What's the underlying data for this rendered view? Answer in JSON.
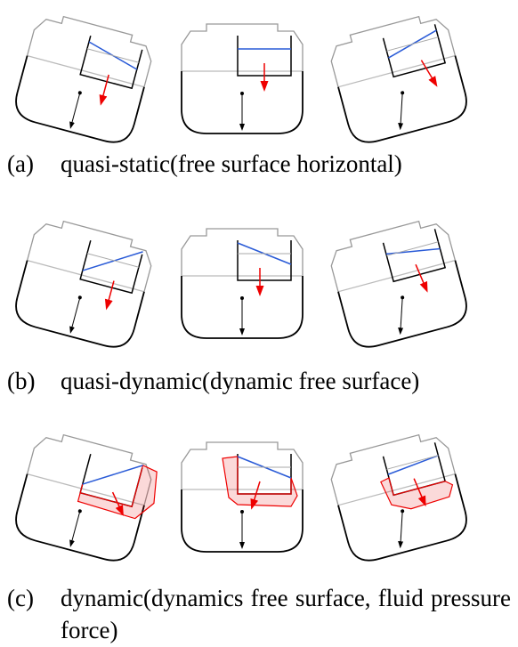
{
  "captions": [
    {
      "label": "(a)",
      "text": "quasi-static(free surface horizontal)"
    },
    {
      "label": "(b)",
      "text": "quasi-dynamic(dynamic free surface)"
    },
    {
      "label": "(c)",
      "text": "dynamic(dynamics free surface, fluid pressure force)"
    }
  ]
}
